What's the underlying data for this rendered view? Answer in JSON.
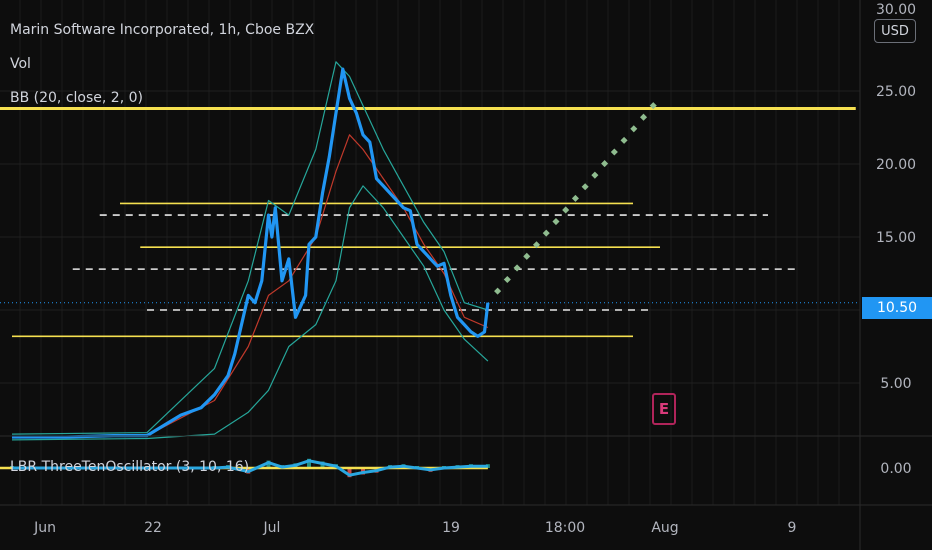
{
  "header": {
    "title": "Marin Software Incorporated, 1h, Cboe BZX",
    "vol_label": "Vol",
    "bb_label": "BB (20, close, 2, 0)",
    "oscillator_label": "LBR ThreeTenOscillator (3, 10, 16)"
  },
  "currency_button": "USD",
  "last_price_label": "10.50",
  "earnings_marker": "E",
  "colors": {
    "background": "#0d0d0d",
    "price_line": "#2196f3",
    "bb_band": "#26a69a",
    "bb_basis": "#c0392b",
    "level_line": "#f5e050",
    "projection": "#8fbc8f",
    "osc_line": "#2aa7e0",
    "volume_up": "#26a69a",
    "volume_down": "#ef5350"
  },
  "chart_data": {
    "type": "line",
    "series": [
      {
        "name": "Price",
        "x": [
          0,
          8,
          15,
          20,
          25,
          28,
          30,
          32,
          33,
          34,
          35,
          36,
          37,
          38,
          38.5,
          39,
          40,
          41,
          42,
          43,
          43.5,
          44,
          45,
          46,
          47,
          48,
          49,
          50,
          51,
          52,
          53,
          54,
          55,
          56,
          57,
          58,
          59,
          60,
          61,
          62,
          63,
          64,
          65,
          66,
          67,
          68,
          69,
          70,
          70.5
        ],
        "values": [
          1.3,
          1.3,
          1.4,
          1.4,
          2.8,
          3.3,
          4.2,
          5.5,
          7.0,
          9.0,
          11.0,
          10.5,
          12.0,
          16.5,
          15.0,
          17.0,
          12.0,
          13.5,
          9.5,
          10.5,
          11.0,
          14.5,
          15.0,
          18.0,
          20.5,
          23.5,
          26.5,
          24.5,
          23.5,
          22.0,
          21.5,
          19.0,
          18.5,
          18.0,
          17.5,
          17.0,
          16.8,
          14.5,
          14.0,
          13.5,
          13.0,
          13.2,
          11.0,
          9.5,
          9.0,
          8.5,
          8.2,
          8.5,
          10.5
        ]
      },
      {
        "name": "BB Upper",
        "x": [
          0,
          20,
          30,
          35,
          38,
          41,
          45,
          48,
          50,
          52,
          55,
          58,
          61,
          64,
          67,
          70.5
        ],
        "values": [
          1.5,
          1.6,
          6.0,
          12.0,
          17.5,
          16.5,
          21.0,
          27.0,
          26.0,
          24.0,
          21.0,
          18.5,
          16.0,
          14.0,
          10.5,
          10.0
        ]
      },
      {
        "name": "BB Basis",
        "x": [
          0,
          20,
          30,
          35,
          38,
          41,
          45,
          48,
          50,
          52,
          55,
          58,
          61,
          64,
          67,
          70.5
        ],
        "values": [
          1.3,
          1.4,
          3.8,
          7.5,
          11.0,
          12.0,
          15.0,
          19.5,
          22.0,
          21.0,
          19.0,
          17.0,
          14.5,
          12.5,
          9.5,
          8.8
        ]
      },
      {
        "name": "BB Lower",
        "x": [
          0,
          20,
          30,
          35,
          38,
          41,
          45,
          48,
          50,
          52,
          55,
          58,
          61,
          64,
          67,
          70.5
        ],
        "values": [
          1.1,
          1.2,
          1.5,
          3.0,
          4.5,
          7.5,
          9.0,
          12.0,
          17.0,
          18.5,
          17.0,
          15.0,
          13.0,
          10.0,
          8.0,
          6.5
        ]
      }
    ],
    "levels": [
      {
        "value": 23.8,
        "style": "solid",
        "x_start": -4,
        "x_end": 125
      },
      {
        "value": 17.3,
        "style": "solid",
        "x_start": 16,
        "x_end": 92
      },
      {
        "value": 16.5,
        "style": "dashed",
        "x_start": 13,
        "x_end": 112
      },
      {
        "value": 14.3,
        "style": "solid",
        "x_start": 19,
        "x_end": 96
      },
      {
        "value": 12.8,
        "style": "dashed",
        "x_start": 9,
        "x_end": 116
      },
      {
        "value": 10.0,
        "style": "dashed",
        "x_start": 20,
        "x_end": 95
      },
      {
        "value": 8.2,
        "style": "solid",
        "x_start": 0,
        "x_end": 92
      }
    ],
    "last_price": 10.5,
    "projection": {
      "x": [
        70.5,
        95
      ],
      "values": [
        10.5,
        24.0
      ]
    },
    "ylim": [
      0,
      30
    ],
    "y_ticks": [
      5,
      10,
      15,
      20,
      25
    ],
    "y_tick_labels": [
      "5.00",
      "10.00",
      "15.00",
      "20.00",
      "25.00"
    ],
    "partial_top_label": "30.00",
    "x_tick_labels": [
      "Jun",
      "22",
      "Jul",
      "19",
      "18:00",
      "Aug",
      "9"
    ],
    "oscillator": {
      "tick_labels": [
        "0.00"
      ],
      "x": [
        0,
        20,
        30,
        32,
        35,
        38,
        40,
        42,
        44,
        46,
        48,
        50,
        52,
        54,
        56,
        58,
        60,
        62,
        64,
        66,
        68,
        70.5
      ],
      "values": [
        0,
        0,
        0,
        0.1,
        -0.4,
        0.6,
        0.1,
        0.3,
        0.8,
        0.5,
        0.2,
        -0.8,
        -0.5,
        -0.3,
        0.1,
        0.2,
        0.0,
        -0.2,
        0.0,
        0.1,
        0.2,
        0.2
      ]
    },
    "grid": true
  }
}
